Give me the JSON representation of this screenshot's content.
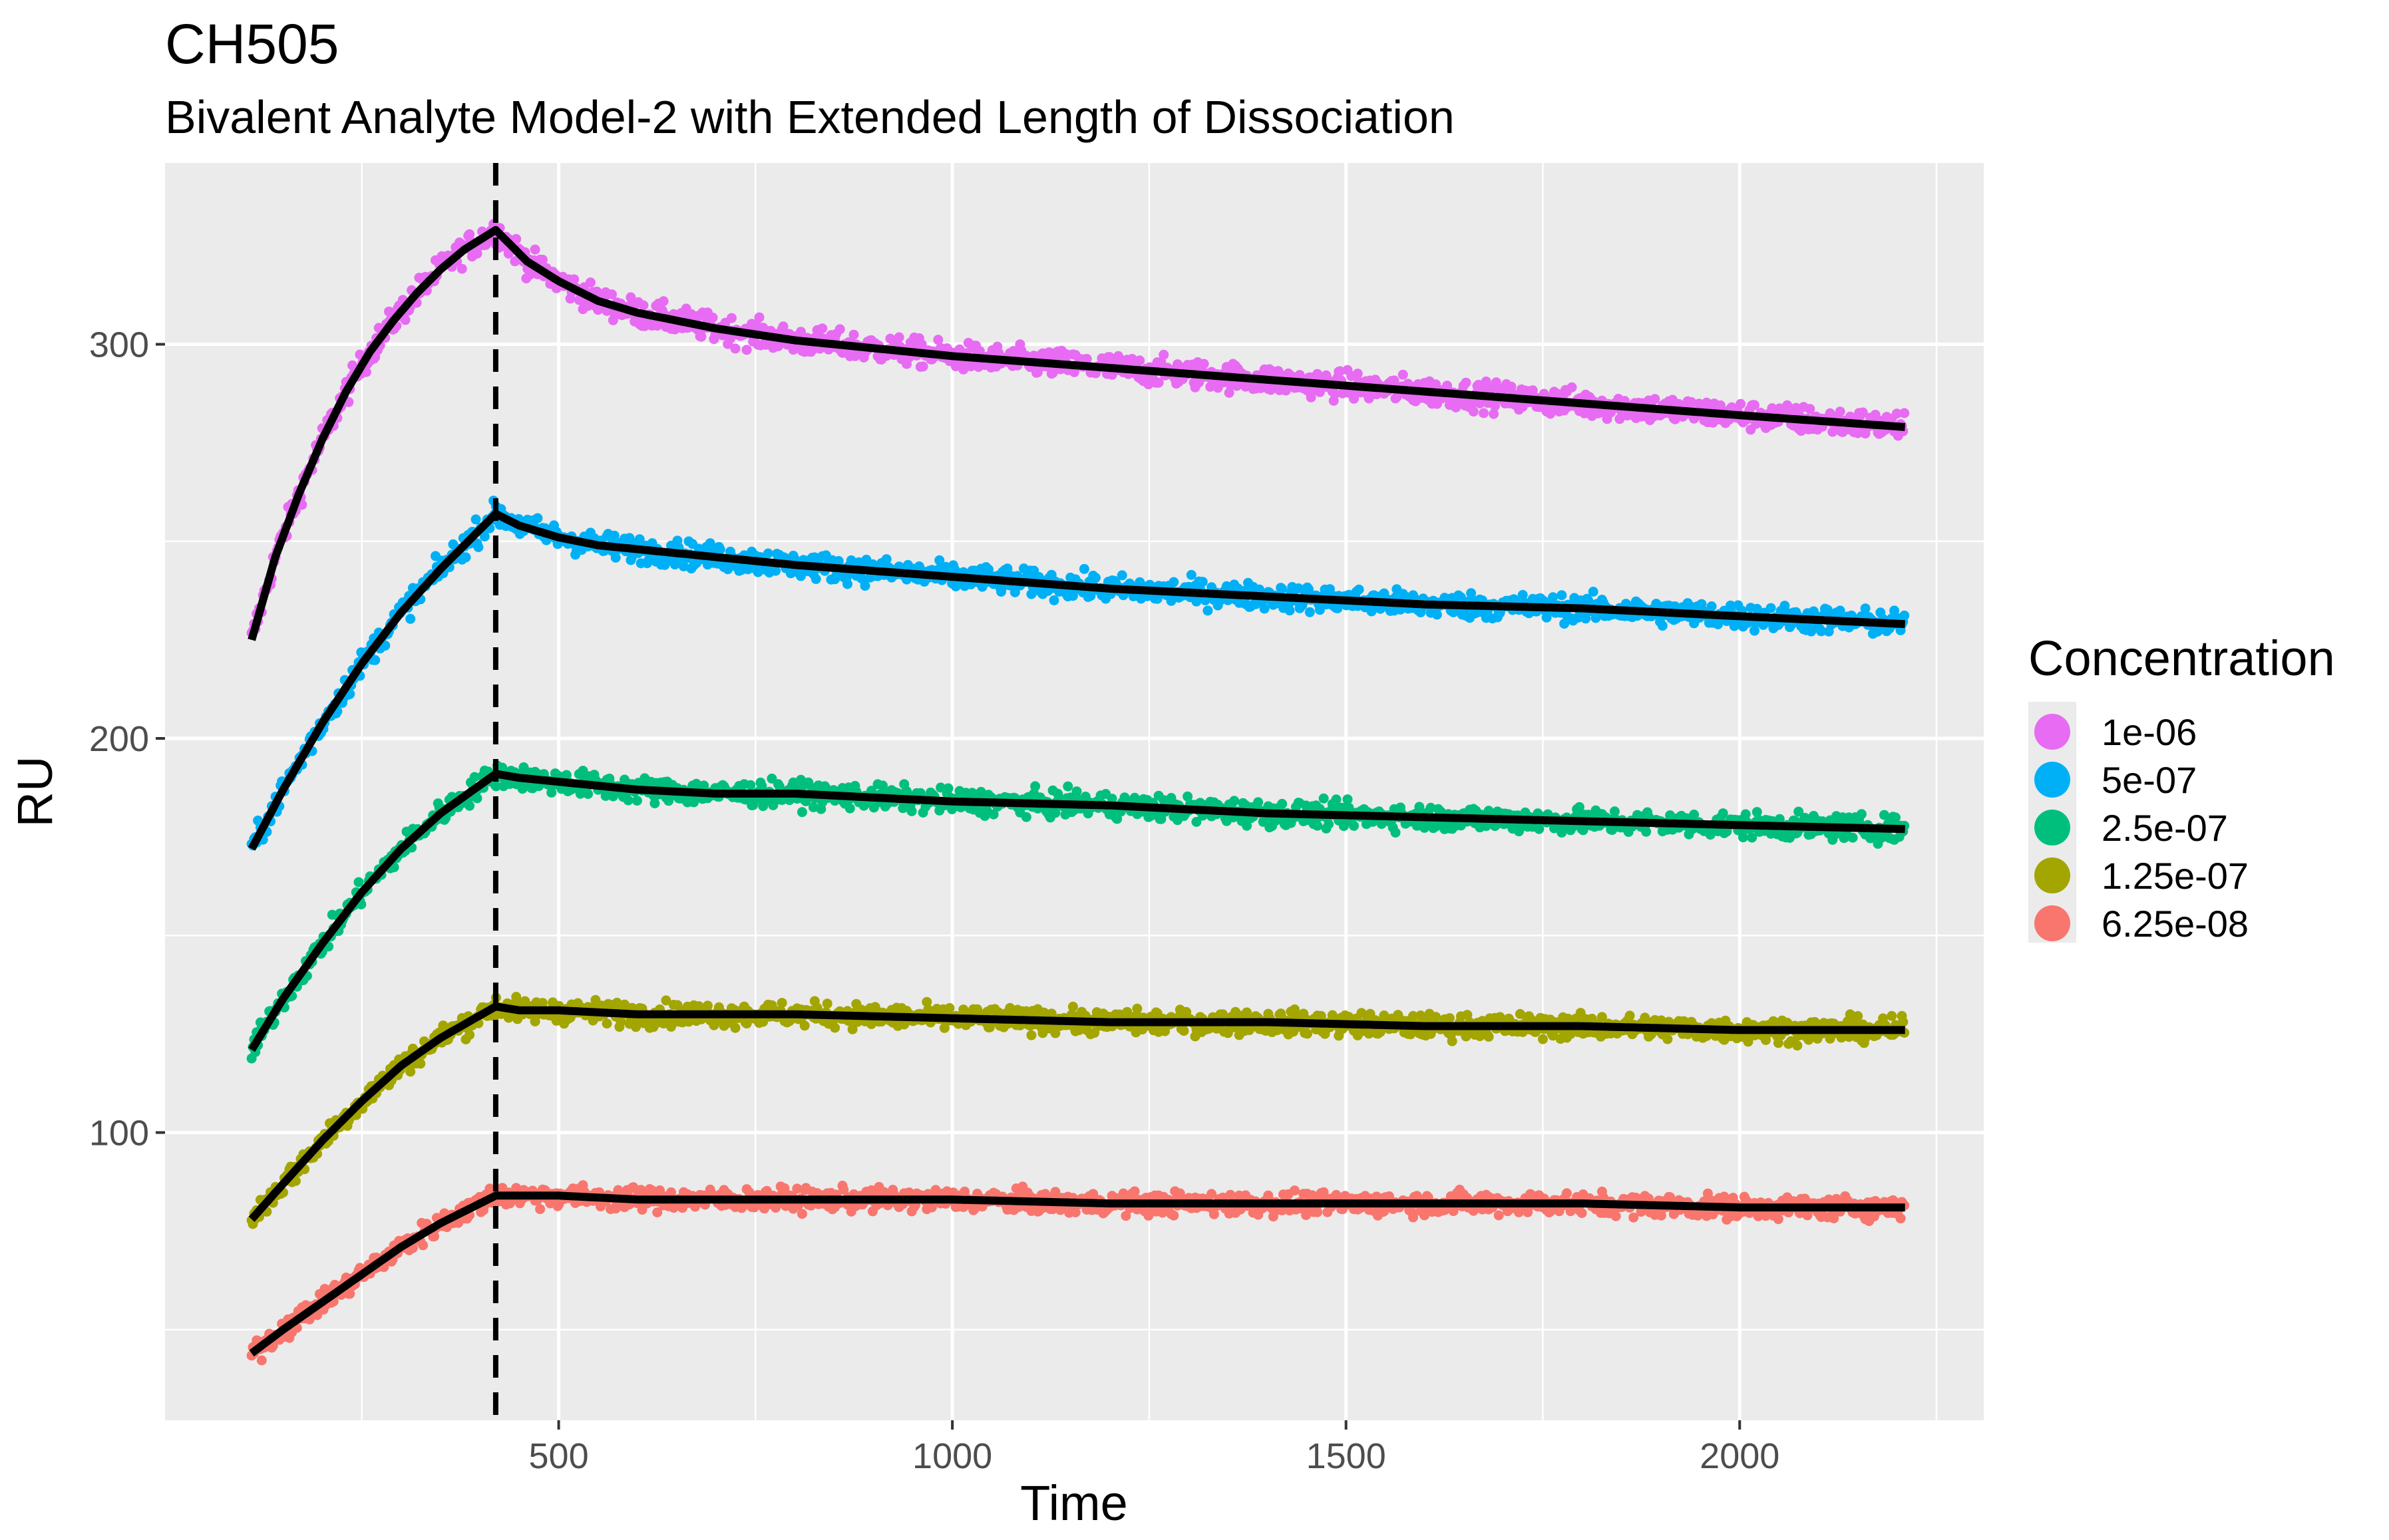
{
  "chart_data": {
    "type": "scatter",
    "title": "CH505",
    "subtitle": "Bivalent Analyte Model-2 with Extended Length of Dissociation",
    "xlabel": "Time",
    "ylabel": "RU",
    "xlim": [
      0,
      2310
    ],
    "ylim": [
      27,
      346
    ],
    "x_ticks": [
      500,
      1000,
      1500,
      2000
    ],
    "y_ticks": [
      100,
      200,
      300
    ],
    "x_minor_ticks": [
      250,
      750,
      1250,
      1750,
      2250
    ],
    "y_minor_ticks": [
      50,
      150,
      250
    ],
    "grid": true,
    "background": "#EBEBEB",
    "vline": {
      "x": 420,
      "style": "dashed",
      "color": "#000000"
    },
    "legend": {
      "title": "Concentration",
      "position": "right",
      "entries": [
        {
          "label": "1e-06",
          "color": "#E76BF3"
        },
        {
          "label": "5e-07",
          "color": "#00B0F6"
        },
        {
          "label": "2.5e-07",
          "color": "#00BF7D"
        },
        {
          "label": "1.25e-07",
          "color": "#A3A500"
        },
        {
          "label": "6.25e-08",
          "color": "#F8766D"
        }
      ]
    },
    "series": [
      {
        "name": "1e-06",
        "color": "#E76BF3",
        "fit_x": [
          110,
          140,
          170,
          200,
          230,
          260,
          290,
          320,
          350,
          380,
          420,
          440,
          460,
          500,
          550,
          600,
          650,
          700,
          800,
          900,
          1000,
          1200,
          1400,
          1600,
          1800,
          2000,
          2210
        ],
        "fit_y": [
          225,
          246,
          262,
          276,
          288,
          298,
          306,
          313,
          319,
          324,
          329,
          325,
          321,
          316,
          311,
          308,
          306,
          304,
          301,
          299,
          297,
          294,
          291,
          288,
          285,
          282,
          279
        ],
        "noise": 2.5
      },
      {
        "name": "5e-07",
        "color": "#00B0F6",
        "fit_x": [
          110,
          150,
          200,
          250,
          300,
          350,
          420,
          450,
          500,
          550,
          600,
          700,
          800,
          1000,
          1200,
          1400,
          1600,
          1800,
          2000,
          2210
        ],
        "fit_y": [
          172,
          187,
          204,
          219,
          232,
          243,
          257,
          254,
          251,
          249,
          248,
          246,
          244,
          241,
          238,
          236,
          234,
          233,
          231,
          229
        ],
        "noise": 2.3
      },
      {
        "name": "2.5e-07",
        "color": "#00BF7D",
        "fit_x": [
          110,
          150,
          200,
          250,
          300,
          350,
          420,
          450,
          500,
          550,
          600,
          700,
          800,
          1000,
          1200,
          1400,
          1600,
          1800,
          2000,
          2210
        ],
        "fit_y": [
          121,
          134,
          148,
          161,
          172,
          181,
          191,
          190,
          189,
          188,
          187,
          186,
          186,
          184,
          183,
          181,
          180,
          179,
          178,
          177
        ],
        "noise": 2.2
      },
      {
        "name": "1.25e-07",
        "color": "#A3A500",
        "fit_x": [
          110,
          150,
          200,
          250,
          300,
          350,
          420,
          450,
          500,
          600,
          800,
          1000,
          1200,
          1400,
          1600,
          1800,
          2000,
          2210
        ],
        "fit_y": [
          78,
          87,
          98,
          108,
          117,
          124,
          132,
          131,
          131,
          130,
          130,
          129,
          128,
          128,
          127,
          127,
          126,
          126
        ],
        "noise": 2.1
      },
      {
        "name": "6.25e-08",
        "color": "#F8766D",
        "fit_x": [
          110,
          150,
          200,
          250,
          300,
          350,
          420,
          450,
          500,
          600,
          800,
          1000,
          1200,
          1400,
          1600,
          1800,
          2000,
          2210
        ],
        "fit_y": [
          44,
          50,
          57,
          64,
          71,
          77,
          84,
          84,
          84,
          83,
          83,
          83,
          82,
          82,
          82,
          82,
          81,
          81
        ],
        "noise": 2.0
      }
    ]
  }
}
